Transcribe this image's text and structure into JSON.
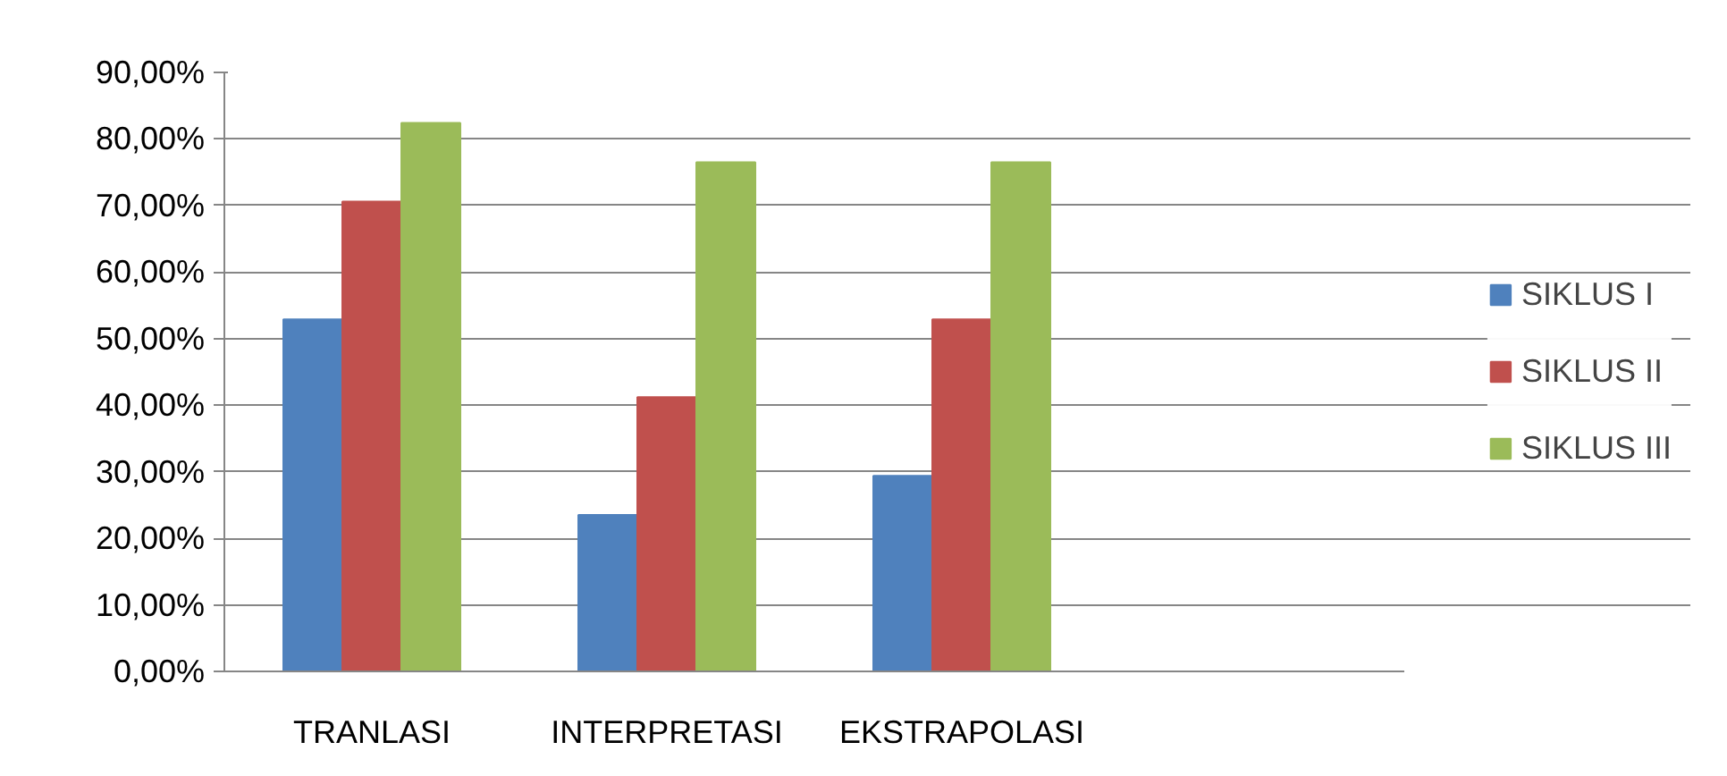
{
  "chart_data": {
    "type": "bar",
    "categories": [
      "TRANLASI",
      "INTERPRETASI",
      "EKSTRAPOLASI",
      null
    ],
    "series": [
      {
        "name": "SIKLUS I",
        "color": "#4f81bd",
        "values": [
          52.9,
          23.5,
          29.4,
          null
        ]
      },
      {
        "name": "SIKLUS II",
        "color": "#c0504d",
        "values": [
          70.6,
          41.2,
          52.9,
          null
        ]
      },
      {
        "name": "SIKLUS III",
        "color": "#9bbb59",
        "values": [
          82.4,
          76.5,
          76.5,
          null
        ]
      }
    ],
    "ylim": [
      0,
      90
    ],
    "yticks": [
      {
        "value": 0,
        "label": "0,00%"
      },
      {
        "value": 10,
        "label": "10,00%"
      },
      {
        "value": 20,
        "label": "20,00%"
      },
      {
        "value": 30,
        "label": "30,00%"
      },
      {
        "value": 40,
        "label": "40,00%"
      },
      {
        "value": 50,
        "label": "50,00%"
      },
      {
        "value": 60,
        "label": "60,00%"
      },
      {
        "value": 70,
        "label": "70,00%"
      },
      {
        "value": 80,
        "label": "80,00%"
      },
      {
        "value": 90,
        "label": "90,00%"
      }
    ],
    "grid": "y",
    "legend": "right"
  }
}
